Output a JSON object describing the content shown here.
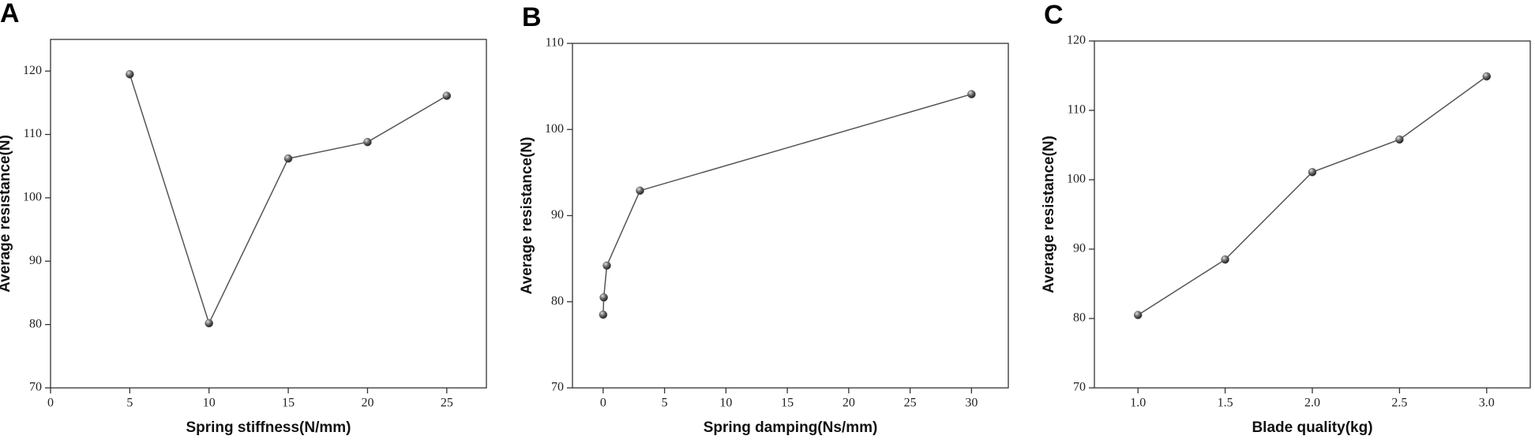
{
  "chart_data": [
    {
      "type": "line",
      "panel": "A",
      "x_label": "Spring stiffness(N/mm)",
      "y_label": "Average resistance(N)",
      "x": [
        5,
        10,
        15,
        20,
        25
      ],
      "series": [
        {
          "name": "Average resistance",
          "color": "#555555",
          "values": [
            119.5,
            80.2,
            106.2,
            108.8,
            116.1
          ]
        }
      ],
      "xlim": [
        0,
        27.5
      ],
      "xticks": [
        0,
        5,
        10,
        15,
        20,
        25
      ],
      "ylim": [
        70,
        125
      ],
      "yticks": [
        70,
        80,
        90,
        100,
        110,
        120
      ]
    },
    {
      "type": "line",
      "panel": "B",
      "x_label": "Spring damping(Ns/mm)",
      "y_label": "Average resistance(N)",
      "x": [
        0,
        0.05,
        0.3,
        3,
        30
      ],
      "series": [
        {
          "name": "Average resistance",
          "color": "#555555",
          "values": [
            78.5,
            80.5,
            84.2,
            92.9,
            104.1
          ]
        }
      ],
      "xlim": [
        -2.5,
        33
      ],
      "xticks": [
        0,
        5,
        10,
        15,
        20,
        25,
        30
      ],
      "ylim": [
        70,
        110
      ],
      "yticks": [
        70,
        80,
        90,
        100,
        110
      ]
    },
    {
      "type": "line",
      "panel": "C",
      "x_label": "Blade quality(kg)",
      "y_label": "Average resistance(N)",
      "x": [
        1.0,
        1.5,
        2.0,
        2.5,
        3.0
      ],
      "series": [
        {
          "name": "Average resistance",
          "color": "#555555",
          "values": [
            80.5,
            88.5,
            101.1,
            105.8,
            114.9
          ]
        }
      ],
      "xlim": [
        0.75,
        3.25
      ],
      "xticks": [
        {
          "value": 1,
          "label": "1.0"
        },
        1.5,
        {
          "value": 2,
          "label": "2.0"
        },
        2.5,
        {
          "value": 3,
          "label": "3.0"
        }
      ],
      "ylim": [
        70,
        120
      ],
      "yticks": [
        70,
        80,
        90,
        100,
        110,
        120
      ]
    }
  ]
}
